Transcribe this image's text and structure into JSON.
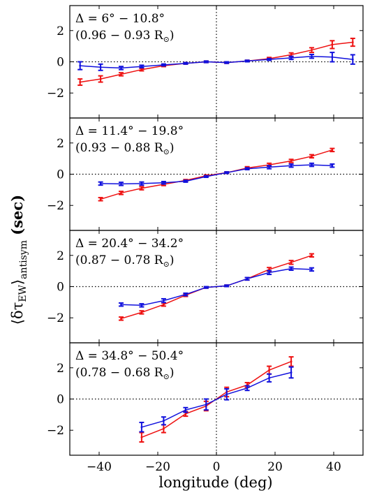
{
  "chart_data": {
    "type": "line",
    "xlabel": "longitude (deg)",
    "ylabel": "⟨δτ",
    "ylabel_sub": "EW",
    "ylabel_close": "⟩",
    "ylabel_sub2": "antisym",
    "ylabel_unit": " (sec)",
    "xlim": [
      -50,
      50
    ],
    "ylim": [
      -3.6,
      3.6
    ],
    "xticks": [
      -40,
      -20,
      0,
      20,
      40
    ],
    "yticks": [
      -2,
      0,
      2
    ],
    "colors": {
      "red": "#ee1111",
      "blue": "#1111dd"
    },
    "panels": [
      {
        "annotation_line1": "Δ = 6° − 10.8°",
        "annotation_line2": "(0.96 − 0.93 R",
        "annotation_sun": "⊙",
        "annotation_close": ")",
        "series": [
          {
            "color": "red",
            "x": [
              -46.5,
              -39.5,
              -32.5,
              -25.5,
              -18.0,
              -10.5,
              -3.5,
              3.5,
              10.5,
              18.0,
              25.5,
              32.5,
              39.5,
              46.5
            ],
            "y": [
              -1.3,
              -1.1,
              -0.8,
              -0.5,
              -0.25,
              -0.1,
              0.0,
              -0.05,
              0.05,
              0.2,
              0.45,
              0.75,
              1.1,
              1.25
            ],
            "err": [
              0.2,
              0.2,
              0.1,
              0.08,
              0.06,
              0.05,
              0.05,
              0.05,
              0.05,
              0.08,
              0.12,
              0.15,
              0.25,
              0.25
            ]
          },
          {
            "color": "blue",
            "x": [
              -46.5,
              -39.5,
              -32.5,
              -25.5,
              -18.0,
              -10.5,
              -3.5,
              3.5,
              10.5,
              18.0,
              25.5,
              32.5,
              39.5,
              46.5
            ],
            "y": [
              -0.25,
              -0.35,
              -0.4,
              -0.3,
              -0.2,
              -0.1,
              0.0,
              -0.05,
              0.05,
              0.15,
              0.25,
              0.35,
              0.3,
              0.15
            ],
            "err": [
              0.25,
              0.2,
              0.1,
              0.08,
              0.06,
              0.05,
              0.05,
              0.05,
              0.05,
              0.06,
              0.1,
              0.12,
              0.3,
              0.3
            ]
          }
        ]
      },
      {
        "annotation_line1": "Δ = 11.4° − 19.8°",
        "annotation_line2": "(0.93 − 0.88 R",
        "annotation_sun": "⊙",
        "annotation_close": ")",
        "series": [
          {
            "color": "red",
            "x": [
              -39.5,
              -32.5,
              -25.5,
              -18.0,
              -10.5,
              -3.5,
              3.5,
              10.5,
              18.0,
              25.5,
              32.5,
              39.5
            ],
            "y": [
              -1.6,
              -1.2,
              -0.9,
              -0.65,
              -0.4,
              -0.1,
              0.1,
              0.4,
              0.6,
              0.85,
              1.15,
              1.55
            ],
            "err": [
              0.1,
              0.1,
              0.1,
              0.08,
              0.06,
              0.05,
              0.05,
              0.08,
              0.1,
              0.1,
              0.1,
              0.1
            ]
          },
          {
            "color": "blue",
            "x": [
              -39.5,
              -32.5,
              -25.5,
              -18.0,
              -10.5,
              -3.5,
              3.5,
              10.5,
              18.0,
              25.5,
              32.5,
              39.5
            ],
            "y": [
              -0.6,
              -0.62,
              -0.6,
              -0.55,
              -0.45,
              -0.15,
              0.1,
              0.35,
              0.45,
              0.55,
              0.6,
              0.55
            ],
            "err": [
              0.1,
              0.1,
              0.1,
              0.08,
              0.06,
              0.05,
              0.05,
              0.06,
              0.1,
              0.1,
              0.1,
              0.1
            ]
          }
        ]
      },
      {
        "annotation_line1": "Δ = 20.4° − 34.2°",
        "annotation_line2": "(0.87 − 0.78 R",
        "annotation_sun": "⊙",
        "annotation_close": ")",
        "series": [
          {
            "color": "red",
            "x": [
              -32.5,
              -25.5,
              -18.0,
              -10.5,
              -3.5,
              3.5,
              10.5,
              18.0,
              25.5,
              32.5
            ],
            "y": [
              -2.05,
              -1.65,
              -1.15,
              -0.55,
              -0.05,
              0.05,
              0.5,
              1.1,
              1.55,
              2.0
            ],
            "err": [
              0.1,
              0.1,
              0.1,
              0.08,
              0.05,
              0.05,
              0.08,
              0.12,
              0.12,
              0.1
            ]
          },
          {
            "color": "blue",
            "x": [
              -32.5,
              -25.5,
              -18.0,
              -10.5,
              -3.5,
              3.5,
              10.5,
              18.0,
              25.5,
              32.5
            ],
            "y": [
              -1.15,
              -1.2,
              -0.9,
              -0.5,
              -0.05,
              0.05,
              0.5,
              0.9,
              1.15,
              1.1
            ],
            "err": [
              0.1,
              0.1,
              0.12,
              0.08,
              0.05,
              0.05,
              0.08,
              0.12,
              0.1,
              0.1
            ]
          }
        ]
      },
      {
        "annotation_line1": "Δ = 34.8° − 50.4°",
        "annotation_line2": "(0.78 − 0.68 R",
        "annotation_sun": "⊙",
        "annotation_close": ")",
        "series": [
          {
            "color": "red",
            "x": [
              -25.5,
              -18.0,
              -10.5,
              -3.5,
              3.5,
              10.5,
              18.0,
              25.5
            ],
            "y": [
              -2.45,
              -1.9,
              -0.95,
              -0.45,
              0.45,
              0.9,
              1.85,
              2.4
            ],
            "err": [
              0.3,
              0.25,
              0.15,
              0.3,
              0.3,
              0.15,
              0.25,
              0.3
            ]
          },
          {
            "color": "blue",
            "x": [
              -25.5,
              -18.0,
              -10.5,
              -3.5,
              3.5,
              10.5,
              18.0,
              25.5
            ],
            "y": [
              -1.8,
              -1.4,
              -0.7,
              -0.35,
              0.3,
              0.7,
              1.35,
              1.7
            ],
            "err": [
              0.3,
              0.25,
              0.15,
              0.35,
              0.35,
              0.15,
              0.25,
              0.35
            ]
          }
        ]
      }
    ]
  }
}
